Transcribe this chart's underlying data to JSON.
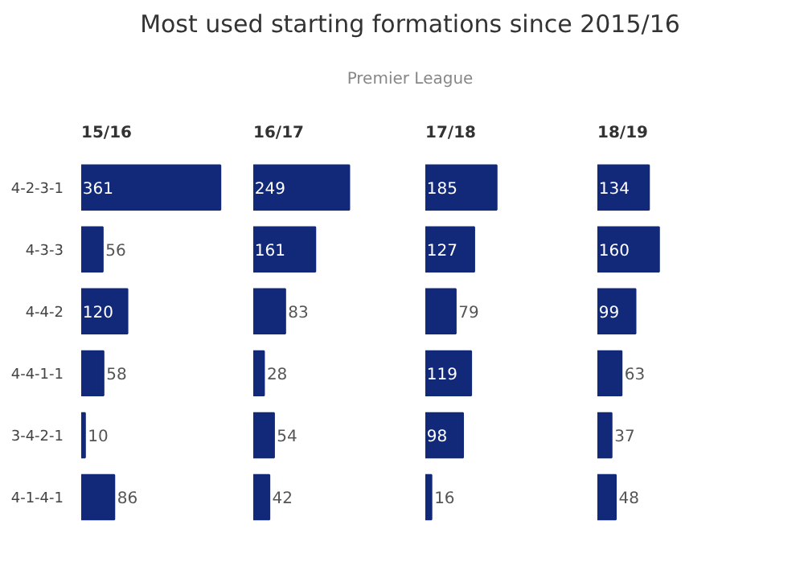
{
  "chart_data": [
    {
      "type": "other",
      "title": "Most used starting formations since 2015/16",
      "subtitle": "Premier League"
    },
    {
      "type": "bar",
      "orientation": "horizontal",
      "title": "15/16",
      "categories": [
        "4-2-3-1",
        "4-3-3",
        "4-4-2",
        "4-4-1-1",
        "3-4-2-1",
        "4-1-4-1"
      ],
      "values": [
        361,
        56,
        120,
        58,
        10,
        86
      ],
      "color": "#12297a",
      "data_labels": true,
      "tick_labels": "y"
    },
    {
      "type": "bar",
      "orientation": "horizontal",
      "title": "16/17",
      "categories": [
        "4-2-3-1",
        "4-3-3",
        "4-4-2",
        "4-4-1-1",
        "3-4-2-1",
        "4-1-4-1"
      ],
      "values": [
        249,
        161,
        83,
        28,
        54,
        42
      ],
      "color": "#12297a",
      "data_labels": true,
      "tick_labels": false
    },
    {
      "type": "bar",
      "orientation": "horizontal",
      "title": "17/18",
      "categories": [
        "4-2-3-1",
        "4-3-3",
        "4-4-2",
        "4-4-1-1",
        "3-4-2-1",
        "4-1-4-1"
      ],
      "values": [
        185,
        127,
        79,
        119,
        98,
        16
      ],
      "color": "#12297a",
      "data_labels": true,
      "tick_labels": false
    },
    {
      "type": "bar",
      "orientation": "horizontal",
      "title": "18/19",
      "categories": [
        "4-2-3-1",
        "4-3-3",
        "4-4-2",
        "4-4-1-1",
        "3-4-2-1",
        "4-1-4-1"
      ],
      "values": [
        134,
        160,
        99,
        63,
        37,
        48
      ],
      "color": "#12297a",
      "data_labels": true,
      "tick_labels": false
    }
  ]
}
